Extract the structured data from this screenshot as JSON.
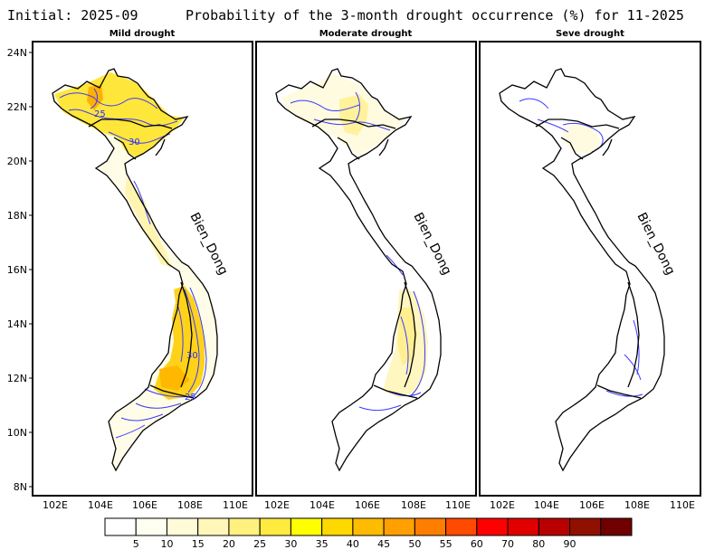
{
  "header": {
    "initial": "Initial: 2025-09",
    "title": "Probability of the 3-month drought occurrence (%) for 11-2025"
  },
  "panels": [
    {
      "title": "Mild drought",
      "sea_label": "Bien_Dong",
      "contour_labels": [
        "25",
        "30",
        "30",
        "25"
      ]
    },
    {
      "title": "Moderate drought",
      "sea_label": "Bien_Dong",
      "contour_labels": []
    },
    {
      "title": "Seve drought",
      "sea_label": "Bien_Dong",
      "contour_labels": []
    }
  ],
  "axes": {
    "lat_ticks": [
      "24N",
      "22N",
      "20N",
      "18N",
      "16N",
      "14N",
      "12N",
      "10N",
      "8N"
    ],
    "lon_ticks": [
      "102E",
      "104E",
      "106E",
      "108E",
      "110E"
    ]
  },
  "colorbar": {
    "colors": [
      "#ffffff",
      "#fffff0",
      "#fffad8",
      "#fff6b8",
      "#fff080",
      "#ffea40",
      "#ffff00",
      "#ffd800",
      "#ffbb00",
      "#ffa000",
      "#ff7e00",
      "#ff4a00",
      "#ff0000",
      "#e00000",
      "#b80000",
      "#901000",
      "#700000"
    ],
    "labels": [
      "5",
      "10",
      "15",
      "20",
      "25",
      "30",
      "35",
      "40",
      "45",
      "50",
      "55",
      "60",
      "70",
      "80",
      "90"
    ]
  },
  "colors": {
    "contour": "#3a3aff",
    "border": "#000000"
  }
}
